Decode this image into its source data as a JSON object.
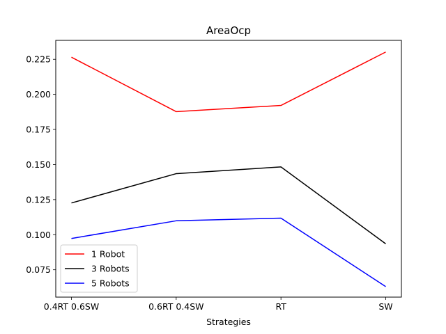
{
  "chart_data": {
    "type": "line",
    "title": "AreaOcp",
    "xlabel": "Strategies",
    "ylabel": "",
    "categories": [
      "0.4RT 0.6SW",
      "0.6RT 0.4SW",
      "RT",
      "SW"
    ],
    "yticks": [
      "0.075",
      "0.100",
      "0.125",
      "0.150",
      "0.175",
      "0.200",
      "0.225"
    ],
    "ylim": [
      0.0555,
      0.2385
    ],
    "grid": false,
    "legend_position": "lower-left",
    "series": [
      {
        "name": "1 Robot",
        "color": "#ff0000",
        "values": [
          0.2265,
          0.1877,
          0.1921,
          0.2302
        ]
      },
      {
        "name": "3 Robots",
        "color": "#000000",
        "values": [
          0.1226,
          0.1435,
          0.1483,
          0.0935
        ]
      },
      {
        "name": "5 Robots",
        "color": "#0000ff",
        "values": [
          0.0973,
          0.1099,
          0.1118,
          0.063
        ]
      }
    ]
  }
}
